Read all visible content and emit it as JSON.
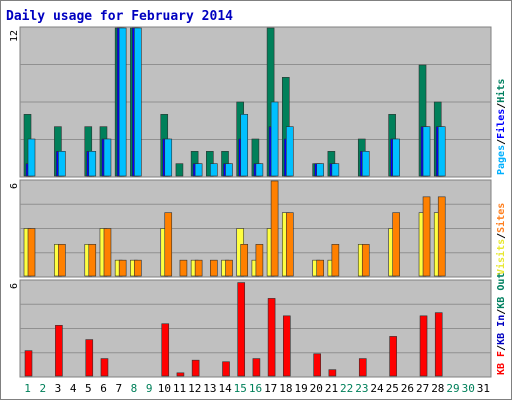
{
  "chart_data": {
    "type": "bar",
    "title": "Daily usage for February 2014",
    "days": [
      "1",
      "2",
      "3",
      "4",
      "5",
      "6",
      "7",
      "8",
      "9",
      "10",
      "11",
      "12",
      "13",
      "14",
      "15",
      "16",
      "17",
      "18",
      "19",
      "20",
      "21",
      "22",
      "23",
      "24",
      "25",
      "26",
      "27",
      "28",
      "29",
      "30",
      "31"
    ],
    "weekend_days": [
      "1",
      "2",
      "8",
      "9",
      "15",
      "16",
      "22",
      "23",
      "29",
      "30"
    ],
    "panels": [
      {
        "id": "top",
        "ymax_label": "12",
        "ymax": 12,
        "legend": [
          {
            "text": "Pages",
            "color": "#00b0ff"
          },
          {
            "text": "/",
            "color": "#000000"
          },
          {
            "text": "Files",
            "color": "#0000ff"
          },
          {
            "text": "/",
            "color": "#000000"
          },
          {
            "text": "Hits",
            "color": "#008060"
          }
        ],
        "series": [
          {
            "name": "Hits",
            "color": "#00805a",
            "values": [
              5,
              0,
              4,
              0,
              4,
              4,
              12,
              12,
              0,
              5,
              1,
              2,
              2,
              2,
              6,
              3,
              12,
              8,
              0,
              1,
              2,
              0,
              3,
              0,
              5,
              0,
              9,
              6,
              0,
              0,
              0
            ]
          },
          {
            "name": "Files",
            "color": "#0000ff",
            "values": [
              1,
              0,
              2,
              0,
              2,
              3,
              12,
              12,
              0,
              3,
              0,
              1,
              0,
              1,
              3,
              1,
              4,
              3,
              0,
              1,
              1,
              0,
              2,
              0,
              3,
              0,
              4,
              4,
              0,
              0,
              0
            ]
          },
          {
            "name": "Pages",
            "color": "#00c0ff",
            "values": [
              3,
              0,
              2,
              0,
              2,
              3,
              12,
              12,
              0,
              3,
              0,
              1,
              1,
              1,
              5,
              1,
              6,
              4,
              0,
              1,
              1,
              0,
              2,
              0,
              3,
              0,
              4,
              4,
              0,
              0,
              0
            ]
          }
        ]
      },
      {
        "id": "middle",
        "ymax_label": "6",
        "ymax": 6,
        "legend": [
          {
            "text": "Visits",
            "color": "#e8e830"
          },
          {
            "text": "/",
            "color": "#000000"
          },
          {
            "text": "Sites",
            "color": "#ff8020"
          }
        ],
        "series": [
          {
            "name": "Visits",
            "color": "#ffff40",
            "values": [
              3,
              0,
              2,
              0,
              2,
              3,
              1,
              1,
              0,
              3,
              0,
              1,
              0,
              1,
              3,
              1,
              3,
              4,
              0,
              1,
              1,
              0,
              2,
              0,
              3,
              0,
              4,
              4,
              0,
              0,
              0
            ]
          },
          {
            "name": "Sites",
            "color": "#ff8000",
            "values": [
              3,
              0,
              2,
              0,
              2,
              3,
              1,
              1,
              0,
              4,
              1,
              1,
              1,
              1,
              2,
              2,
              6,
              4,
              0,
              1,
              2,
              0,
              2,
              0,
              4,
              0,
              5,
              5,
              0,
              0,
              0
            ]
          }
        ]
      },
      {
        "id": "bottom",
        "ymax_label": "6",
        "ymax": 6,
        "legend": [
          {
            "text": "KB F",
            "color": "#ff0000"
          },
          {
            "text": "/",
            "color": "#000000"
          },
          {
            "text": "KB In",
            "color": "#0000c0"
          },
          {
            "text": "/",
            "color": "#000000"
          },
          {
            "text": "KB Out",
            "color": "#008060"
          }
        ],
        "series": [
          {
            "name": "KB F",
            "color": "#ff0000",
            "values": [
              1.6,
              0,
              3.2,
              0,
              2.3,
              1.1,
              0,
              0,
              0,
              3.3,
              0.2,
              1.0,
              0,
              0.9,
              5.9,
              1.1,
              4.9,
              3.8,
              0,
              1.4,
              0.4,
              0,
              1.1,
              0,
              2.5,
              0,
              3.8,
              4.0,
              0,
              0,
              0
            ]
          }
        ]
      }
    ]
  }
}
